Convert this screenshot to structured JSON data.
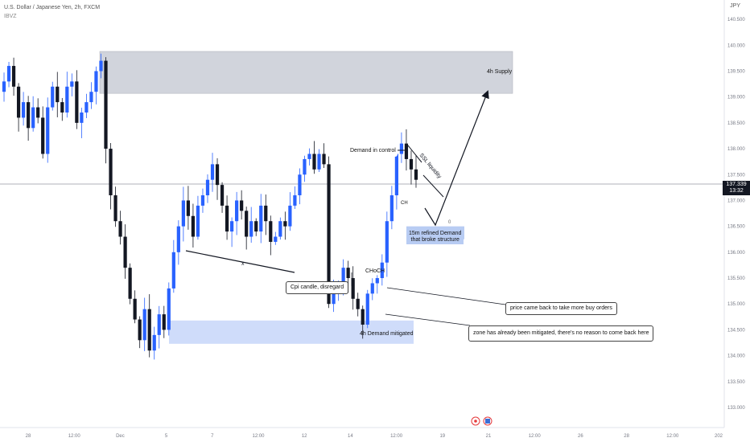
{
  "header": {
    "symbol_line": "U.S. Dollar / Japanese Yen, 2h, FXCM",
    "indicator": "IBVZ"
  },
  "currency": "JPY",
  "price_tag": {
    "value": "137.339",
    "countdown": "13:32"
  },
  "annotations": {
    "supply": "4h Supply",
    "demand_in_control": "Demand in control",
    "ssl": "SSL liquidity",
    "refined_demand_line1": "15m refined Demand",
    "refined_demand_line2": "that broke structure",
    "x_mark": "x",
    "choch": "CHoCH",
    "ch": "CH",
    "cpi": "Cpi candle, disregard",
    "demand_mitigated": "4h Demand mitigated",
    "price_back": "price came back to take more buy orders",
    "zone_mitigated": "zone has already been mitigated, there's no reason to come back here",
    "zero": "0"
  },
  "colors": {
    "bull": "#2962ff",
    "bear": "#131722",
    "wick": "#b2b5be",
    "supply_zone": "#d1d4dc",
    "demand_zone": "#cfdcfa",
    "refined_zone": "#b8ccf3"
  },
  "chart_data": {
    "type": "candlestick",
    "symbol": "USDJPY",
    "timeframe": "2h",
    "y_axis": {
      "ticks": [
        "140.500",
        "140.000",
        "139.500",
        "139.000",
        "138.500",
        "138.000",
        "137.500",
        "137.000",
        "136.500",
        "136.000",
        "135.500",
        "135.000",
        "134.500",
        "134.000",
        "133.500",
        "133.000"
      ],
      "ylim": [
        133.0,
        140.75
      ]
    },
    "x_axis": {
      "ticks": [
        "28",
        "12:00",
        "Dec",
        "5",
        "7",
        "12:00",
        "12",
        "14",
        "12:00",
        "19",
        "21",
        "12:00",
        "26",
        "28",
        "12:00",
        "202"
      ]
    },
    "current_price": 137.339,
    "zones": [
      {
        "name": "4h Supply",
        "low": 139.07,
        "high": 139.88
      },
      {
        "name": "4h Demand",
        "low": 134.23,
        "high": 134.68
      },
      {
        "name": "15m refined Demand",
        "low": 136.25,
        "high": 136.5
      }
    ],
    "price_path": [
      139.1,
      139.3,
      139.6,
      139.2,
      138.6,
      138.9,
      138.4,
      138.8,
      138.6,
      137.9,
      138.8,
      139.2,
      138.9,
      138.7,
      139.2,
      139.3,
      138.5,
      138.7,
      138.9,
      139.1,
      139.5,
      139.7,
      138.0,
      137.1,
      136.6,
      136.3,
      135.7,
      135.1,
      134.7,
      134.3,
      134.9,
      134.1,
      134.4,
      134.8,
      134.5,
      135.3,
      136.0,
      136.5,
      137.0,
      136.7,
      136.3,
      136.9,
      137.1,
      137.4,
      137.7,
      137.3,
      136.9,
      136.4,
      136.6,
      137.0,
      136.8,
      136.3,
      136.6,
      136.4,
      136.9,
      136.6,
      136.2,
      136.3,
      136.6,
      136.5,
      136.9,
      137.1,
      137.5,
      137.8,
      137.9,
      137.6,
      137.9,
      137.7,
      135.0,
      135.3,
      135.4,
      135.7,
      135.5,
      135.1,
      134.9,
      134.6,
      135.2,
      135.4,
      135.5,
      135.8,
      136.6,
      137.1,
      137.9,
      138.1,
      137.8,
      137.6,
      137.4
    ]
  }
}
